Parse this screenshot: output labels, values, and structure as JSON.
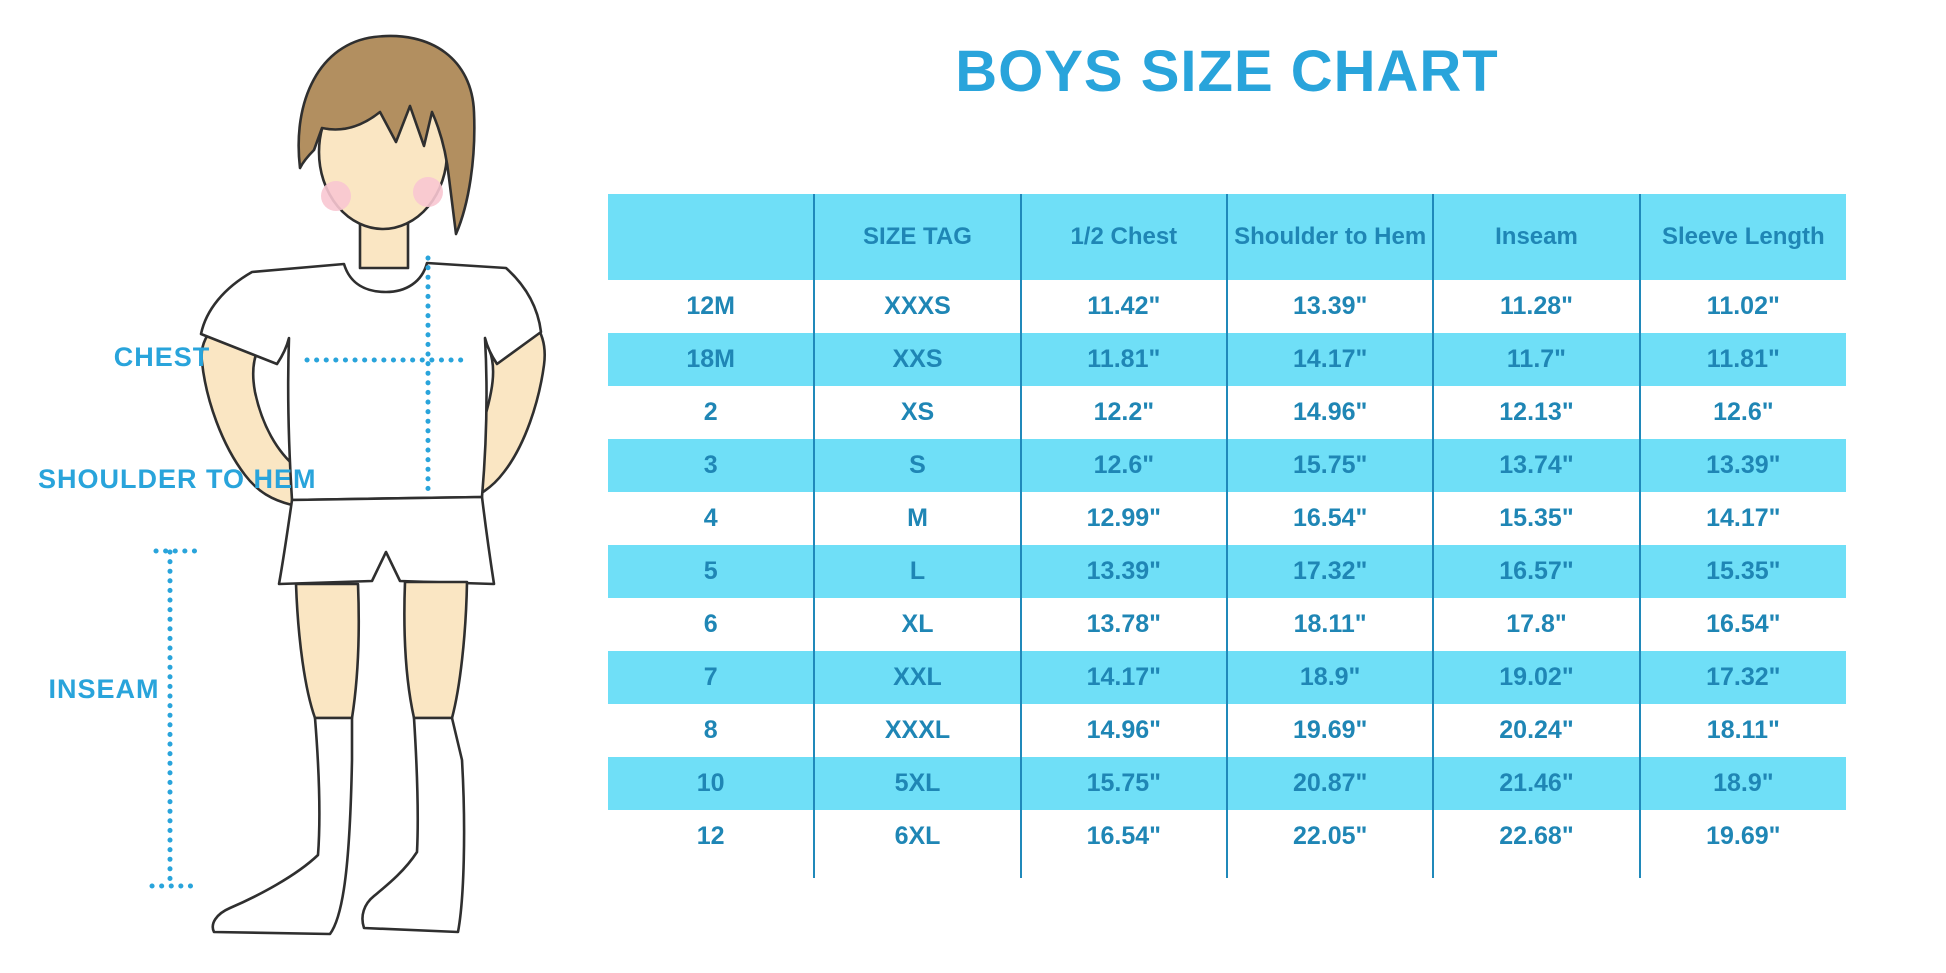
{
  "title": "BOYS SIZE CHART",
  "illustration": {
    "chest_label": "CHEST",
    "shoulder_to_hem_label": "SHOULDER TO HEM",
    "inseam_label": "INSEAM"
  },
  "colors": {
    "accent_blue": "#29a4db",
    "light_blue": "#6fdff7",
    "table_text_blue": "#1f86b5",
    "grid_line_blue": "#2089ba",
    "skin": "#fae6c3",
    "hair_brown": "#b28f60",
    "cheek_pink": "#f8c6d2"
  },
  "chart_data": {
    "type": "table",
    "title": "BOYS SIZE CHART",
    "columns": [
      "",
      "SIZE TAG",
      "1/2 Chest",
      "Shoulder to Hem",
      "Inseam",
      "Sleeve Length"
    ],
    "rows": [
      [
        "12M",
        "XXXS",
        "11.42\"",
        "13.39\"",
        "11.28\"",
        "11.02\""
      ],
      [
        "18M",
        "XXS",
        "11.81\"",
        "14.17\"",
        "11.7\"",
        "11.81\""
      ],
      [
        "2",
        "XS",
        "12.2\"",
        "14.96\"",
        "12.13\"",
        "12.6\""
      ],
      [
        "3",
        "S",
        "12.6\"",
        "15.75\"",
        "13.74\"",
        "13.39\""
      ],
      [
        "4",
        "M",
        "12.99\"",
        "16.54\"",
        "15.35\"",
        "14.17\""
      ],
      [
        "5",
        "L",
        "13.39\"",
        "17.32\"",
        "16.57\"",
        "15.35\""
      ],
      [
        "6",
        "XL",
        "13.78\"",
        "18.11\"",
        "17.8\"",
        "16.54\""
      ],
      [
        "7",
        "XXL",
        "14.17\"",
        "18.9\"",
        "19.02\"",
        "17.32\""
      ],
      [
        "8",
        "XXXL",
        "14.96\"",
        "19.69\"",
        "20.24\"",
        "18.11\""
      ],
      [
        "10",
        "5XL",
        "15.75\"",
        "20.87\"",
        "21.46\"",
        "18.9\""
      ],
      [
        "12",
        "6XL",
        "16.54\"",
        "22.05\"",
        "22.68\"",
        "19.69\""
      ]
    ]
  }
}
